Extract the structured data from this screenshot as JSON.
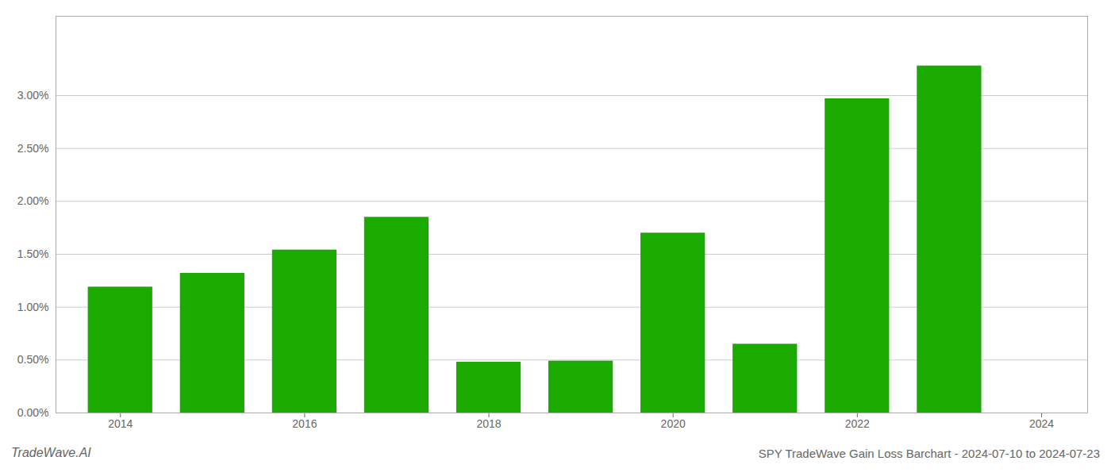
{
  "chart_data": {
    "type": "bar",
    "title": "SPY TradeWave Gain Loss Barchart - 2024-07-10 to 2024-07-23",
    "annotations": [
      "TradeWave.AI"
    ],
    "x": [
      2014,
      2015,
      2016,
      2017,
      2018,
      2019,
      2020,
      2021,
      2022,
      2023
    ],
    "values": [
      0.0119,
      0.0132,
      0.0154,
      0.0185,
      0.0048,
      0.0049,
      0.017,
      0.0065,
      0.0297,
      0.0328
    ],
    "color": "#1aaa00",
    "xlim": [
      2013.3,
      2024.5
    ],
    "xticks": [
      2014,
      2016,
      2018,
      2020,
      2022,
      2024
    ],
    "ylim": [
      0,
      0.0375
    ],
    "yticks": [
      {
        "value": 0.0,
        "label": "0.00%"
      },
      {
        "value": 0.005,
        "label": "0.50%"
      },
      {
        "value": 0.01,
        "label": "1.00%"
      },
      {
        "value": 0.015,
        "label": "1.50%"
      },
      {
        "value": 0.02,
        "label": "2.00%"
      },
      {
        "value": 0.025,
        "label": "2.50%"
      },
      {
        "value": 0.03,
        "label": "3.00%"
      }
    ],
    "grid": true
  }
}
